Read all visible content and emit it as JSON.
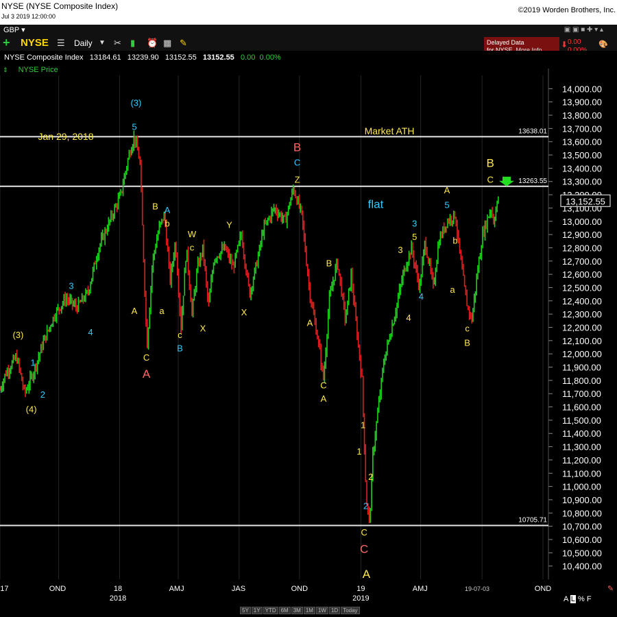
{
  "window": {
    "title": "NYSE (NYSE Composite Index)",
    "datetime": "Jul 3 2019 12:00:00",
    "copyright": "©2019 Worden Brothers, Inc."
  },
  "toolbar": {
    "currency": "GBP ▾",
    "symbol": "NYSE",
    "period": "Daily",
    "delayed_line1": "Delayed Data",
    "delayed_line2": "for NYSE",
    "more_info": "More Info...",
    "change_value": "0.00",
    "change_pct": "0.00%"
  },
  "quote": {
    "name": "NYSE Composite Index",
    "open": "13184.61",
    "high": "13239.90",
    "low": "13152.55",
    "close": "13152.55",
    "change": "0.00",
    "change_pct": "0.00%",
    "indicator": "NYSE Price"
  },
  "chart_data": {
    "type": "candlestick",
    "y_range": [
      10300,
      14100
    ],
    "y_ticks": [
      "14,000.00",
      "13,900.00",
      "13,800.00",
      "13,700.00",
      "13,600.00",
      "13,500.00",
      "13,400.00",
      "13,300.00",
      "13,200.00",
      "13,100.00",
      "13,000.00",
      "12,900.00",
      "12,800.00",
      "12,700.00",
      "12,600.00",
      "12,500.00",
      "12,400.00",
      "12,300.00",
      "12,200.00",
      "12,100.00",
      "12,000.00",
      "11,900.00",
      "11,800.00",
      "11,700.00",
      "11,600.00",
      "11,500.00",
      "11,400.00",
      "11,300.00",
      "11,200.00",
      "11,100.00",
      "11,000.00",
      "10,900.00",
      "10,800.00",
      "10,700.00",
      "10,600.00",
      "10,500.00",
      "10,400.00"
    ],
    "x_ticks": [
      {
        "label": "17",
        "sub": ""
      },
      {
        "label": "OND",
        "sub": ""
      },
      {
        "label": "18",
        "sub": "2018"
      },
      {
        "label": "AMJ",
        "sub": ""
      },
      {
        "label": "JAS",
        "sub": ""
      },
      {
        "label": "OND",
        "sub": ""
      },
      {
        "label": "19",
        "sub": "2019"
      },
      {
        "label": "AMJ",
        "sub": ""
      },
      {
        "label": "19-07-03",
        "sub": ""
      },
      {
        "label": "OND",
        "sub": ""
      }
    ],
    "current_price": "13,152.55",
    "hlines": [
      {
        "value": 13638.01,
        "label": "13638.01"
      },
      {
        "value": 13263.55,
        "label": "13263.55"
      },
      {
        "value": 10705.71,
        "label": "10705.71"
      }
    ],
    "price_path": [
      [
        0.0,
        11730
      ],
      [
        0.01,
        11850
      ],
      [
        0.03,
        11980
      ],
      [
        0.045,
        11700
      ],
      [
        0.06,
        11850
      ],
      [
        0.08,
        12100
      ],
      [
        0.1,
        12300
      ],
      [
        0.12,
        12420
      ],
      [
        0.14,
        12350
      ],
      [
        0.16,
        12460
      ],
      [
        0.18,
        12800
      ],
      [
        0.2,
        13000
      ],
      [
        0.22,
        13200
      ],
      [
        0.235,
        13500
      ],
      [
        0.245,
        13640
      ],
      [
        0.255,
        13450
      ],
      [
        0.262,
        12700
      ],
      [
        0.268,
        12050
      ],
      [
        0.278,
        12700
      ],
      [
        0.29,
        12950
      ],
      [
        0.3,
        13050
      ],
      [
        0.31,
        12550
      ],
      [
        0.32,
        12850
      ],
      [
        0.33,
        12200
      ],
      [
        0.34,
        12800
      ],
      [
        0.35,
        12300
      ],
      [
        0.36,
        12650
      ],
      [
        0.37,
        12800
      ],
      [
        0.38,
        12350
      ],
      [
        0.39,
        12720
      ],
      [
        0.41,
        12800
      ],
      [
        0.425,
        12650
      ],
      [
        0.44,
        12900
      ],
      [
        0.455,
        12450
      ],
      [
        0.47,
        12720
      ],
      [
        0.48,
        12940
      ],
      [
        0.5,
        13100
      ],
      [
        0.52,
        13000
      ],
      [
        0.535,
        13250
      ],
      [
        0.55,
        13050
      ],
      [
        0.565,
        12450
      ],
      [
        0.58,
        12100
      ],
      [
        0.59,
        11800
      ],
      [
        0.6,
        12400
      ],
      [
        0.615,
        12700
      ],
      [
        0.63,
        12250
      ],
      [
        0.64,
        12600
      ],
      [
        0.66,
        11800
      ],
      [
        0.668,
        10900
      ],
      [
        0.674,
        10720
      ],
      [
        0.68,
        11250
      ],
      [
        0.69,
        11600
      ],
      [
        0.7,
        11950
      ],
      [
        0.72,
        12300
      ],
      [
        0.735,
        12600
      ],
      [
        0.75,
        12800
      ],
      [
        0.765,
        12500
      ],
      [
        0.775,
        12850
      ],
      [
        0.79,
        12500
      ],
      [
        0.8,
        12850
      ],
      [
        0.815,
        13000
      ],
      [
        0.83,
        13050
      ],
      [
        0.84,
        12700
      ],
      [
        0.85,
        12400
      ],
      [
        0.86,
        12250
      ],
      [
        0.87,
        12600
      ],
      [
        0.88,
        12900
      ],
      [
        0.895,
        13100
      ],
      [
        0.9,
        13000
      ],
      [
        0.91,
        13200
      ]
    ],
    "annotations": [
      {
        "t": "Jan 29, 2018",
        "c": "#ffe84d",
        "x": 0.12,
        "v": 13615
      },
      {
        "t": "Market ATH",
        "c": "#ffe84d",
        "x": 0.71,
        "v": 13655
      },
      {
        "t": "flat",
        "c": "#33ccff",
        "x": 0.685,
        "v": 13100
      },
      {
        "t": "(3)",
        "c": "#33ccff",
        "x": 0.248,
        "v": 13870
      },
      {
        "t": "5",
        "c": "#33ccff",
        "x": 0.245,
        "v": 13690
      },
      {
        "t": "B",
        "c": "#ff6666",
        "x": 0.542,
        "v": 13530
      },
      {
        "t": "C",
        "c": "#33ccff",
        "x": 0.542,
        "v": 13420
      },
      {
        "t": "Z",
        "c": "#ffe84d",
        "x": 0.542,
        "v": 13290
      },
      {
        "t": "B",
        "c": "#ffe84d",
        "x": 0.894,
        "v": 13410
      },
      {
        "t": "C",
        "c": "#ffe84d",
        "x": 0.894,
        "v": 13290
      },
      {
        "t": "A",
        "c": "#ffe84d",
        "x": 0.815,
        "v": 13210
      },
      {
        "t": "5",
        "c": "#33ccff",
        "x": 0.815,
        "v": 13100
      },
      {
        "t": "3",
        "c": "#33ccff",
        "x": 0.756,
        "v": 12960
      },
      {
        "t": "5",
        "c": "#ffe84d",
        "x": 0.756,
        "v": 12860
      },
      {
        "t": "3",
        "c": "#ffe84d",
        "x": 0.73,
        "v": 12760
      },
      {
        "t": "b",
        "c": "#ffe84d",
        "x": 0.83,
        "v": 12830
      },
      {
        "t": "B",
        "c": "#ffe84d",
        "x": 0.283,
        "v": 13090
      },
      {
        "t": "A",
        "c": "#33ccff",
        "x": 0.305,
        "v": 13060
      },
      {
        "t": "b",
        "c": "#ffe84d",
        "x": 0.305,
        "v": 12960
      },
      {
        "t": "W",
        "c": "#ffe84d",
        "x": 0.35,
        "v": 12880
      },
      {
        "t": "c",
        "c": "#ffe84d",
        "x": 0.35,
        "v": 12780
      },
      {
        "t": "Y",
        "c": "#ffe84d",
        "x": 0.418,
        "v": 12950
      },
      {
        "t": "B",
        "c": "#ffe84d",
        "x": 0.6,
        "v": 12660
      },
      {
        "t": "3",
        "c": "#33ccff",
        "x": 0.13,
        "v": 12490
      },
      {
        "t": "4",
        "c": "#33ccff",
        "x": 0.768,
        "v": 12410
      },
      {
        "t": "a",
        "c": "#ffe84d",
        "x": 0.825,
        "v": 12460
      },
      {
        "t": "4",
        "c": "#33ccff",
        "x": 0.165,
        "v": 12140
      },
      {
        "t": "A",
        "c": "#ffe84d",
        "x": 0.245,
        "v": 12300
      },
      {
        "t": "a",
        "c": "#ffe84d",
        "x": 0.295,
        "v": 12300
      },
      {
        "t": "X",
        "c": "#ffe84d",
        "x": 0.37,
        "v": 12170
      },
      {
        "t": "X",
        "c": "#ffe84d",
        "x": 0.445,
        "v": 12290
      },
      {
        "t": "A",
        "c": "#ffe84d",
        "x": 0.565,
        "v": 12210
      },
      {
        "t": "4",
        "c": "#ffe84d",
        "x": 0.745,
        "v": 12250
      },
      {
        "t": "c",
        "c": "#ffe84d",
        "x": 0.328,
        "v": 12120
      },
      {
        "t": "B",
        "c": "#33ccff",
        "x": 0.328,
        "v": 12020
      },
      {
        "t": "c",
        "c": "#ffe84d",
        "x": 0.852,
        "v": 12170
      },
      {
        "t": "B",
        "c": "#ffe84d",
        "x": 0.852,
        "v": 12060
      },
      {
        "t": "(3)",
        "c": "#ffe84d",
        "x": 0.033,
        "v": 12120
      },
      {
        "t": "1",
        "c": "#33ccff",
        "x": 0.06,
        "v": 11910
      },
      {
        "t": "2",
        "c": "#33ccff",
        "x": 0.078,
        "v": 11670
      },
      {
        "t": "(4)",
        "c": "#ffe84d",
        "x": 0.057,
        "v": 11560
      },
      {
        "t": "C",
        "c": "#ffe84d",
        "x": 0.267,
        "v": 11950
      },
      {
        "t": "A",
        "c": "#ff6666",
        "x": 0.267,
        "v": 11820
      },
      {
        "t": "C",
        "c": "#ffe84d",
        "x": 0.59,
        "v": 11740
      },
      {
        "t": "A",
        "c": "#ffe84d",
        "x": 0.59,
        "v": 11640
      },
      {
        "t": "1",
        "c": "#ffe84d",
        "x": 0.662,
        "v": 11440
      },
      {
        "t": "1",
        "c": "#ffe84d",
        "x": 0.655,
        "v": 11240
      },
      {
        "t": "2",
        "c": "#ffe84d",
        "x": 0.676,
        "v": 11050
      },
      {
        "t": "2",
        "c": "#33ccff",
        "x": 0.667,
        "v": 10830
      },
      {
        "t": "C",
        "c": "#ffe84d",
        "x": 0.664,
        "v": 10630
      },
      {
        "t": "C",
        "c": "#ff6666",
        "x": 0.664,
        "v": 10500
      },
      {
        "t": "A",
        "c": "#ffe84d",
        "x": 0.668,
        "v": 10310
      }
    ]
  }
}
